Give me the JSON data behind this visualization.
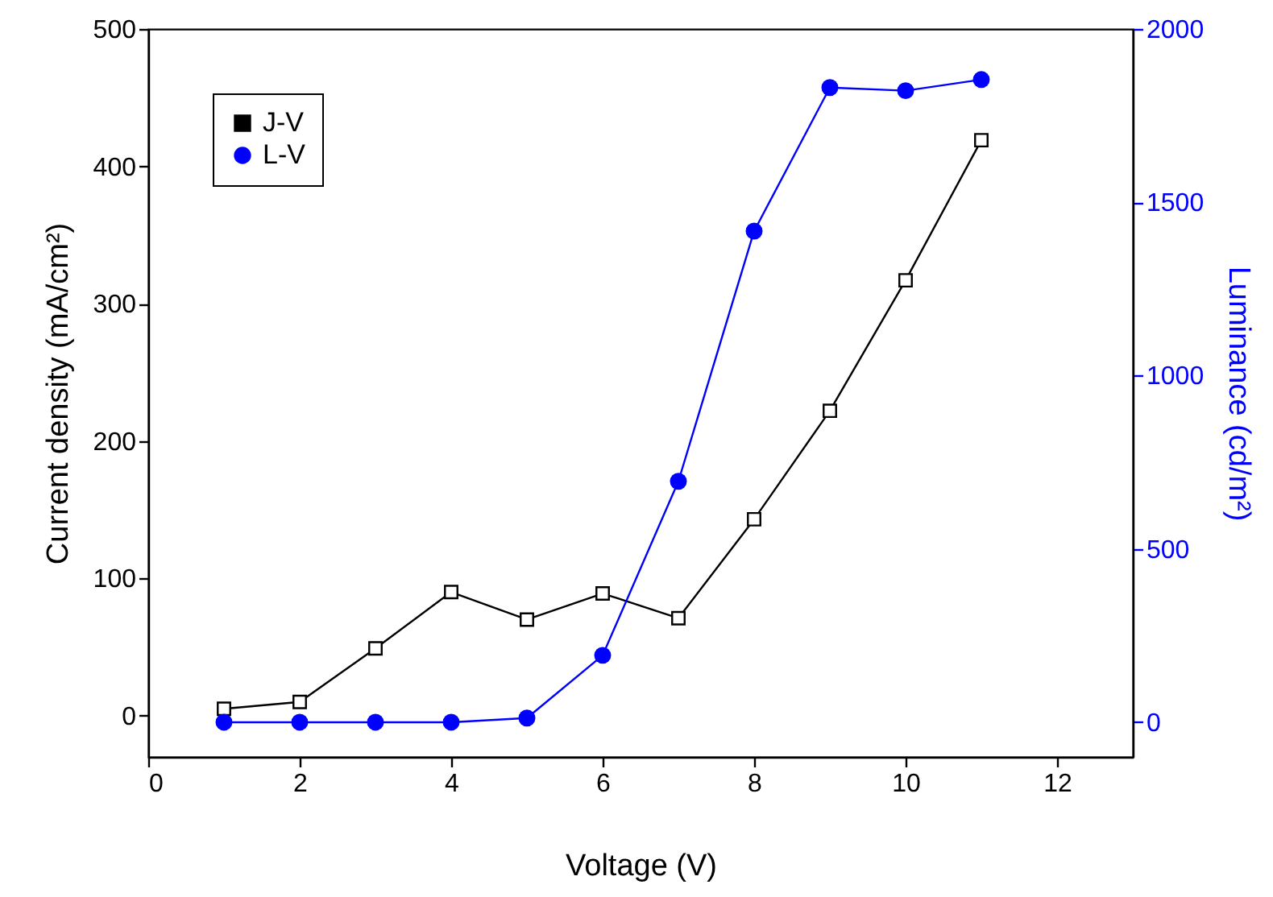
{
  "chart_data": {
    "type": "line",
    "xlabel": "Voltage (V)",
    "ylabel": "Current density (mA/cm²)",
    "y2label": "Luminance (cd/m²)",
    "x": [
      1,
      2,
      3,
      4,
      5,
      6,
      7,
      8,
      9,
      10,
      11
    ],
    "series": [
      {
        "name": "J-V",
        "color": "#000000",
        "marker": "square",
        "values": [
          5,
          10,
          49,
          90,
          70,
          89,
          71,
          143,
          222,
          317,
          419
        ]
      },
      {
        "name": "L-V",
        "color": "#0000ff",
        "marker": "circle",
        "axis": "y2",
        "values": [
          0,
          0,
          0,
          0,
          12,
          193,
          695,
          1417,
          1831,
          1822,
          1854
        ]
      }
    ],
    "xlim": [
      0,
      13
    ],
    "xticks": [
      0,
      2,
      4,
      6,
      8,
      10,
      12
    ],
    "ylim": [
      -30,
      500
    ],
    "yticks": [
      0,
      100,
      200,
      300,
      400,
      500
    ],
    "y2lim": [
      -100,
      2000
    ],
    "y2ticks": [
      0,
      500,
      1000,
      1500,
      2000
    ],
    "grid": false,
    "legend": "top left"
  }
}
